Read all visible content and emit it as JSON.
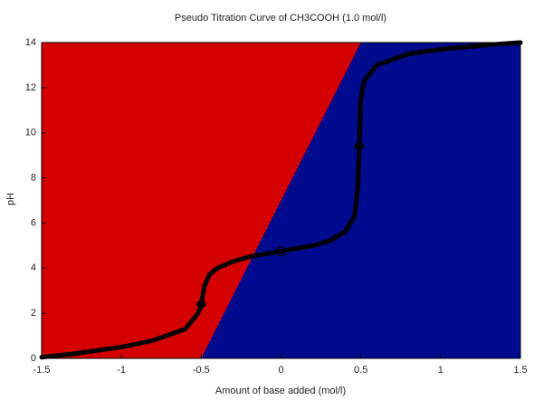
{
  "chart_data": {
    "type": "line",
    "title": "Pseudo Titration Curve of CH3COOH (1.0 mol/l)",
    "xlabel": "Amount of base added (mol/l)",
    "ylabel": "pH",
    "xlim": [
      -1.5,
      1.5
    ],
    "ylim": [
      0,
      14
    ],
    "xticks": [
      -1.5,
      -1,
      -0.5,
      0,
      0.5,
      1,
      1.5
    ],
    "yticks": [
      0,
      2,
      4,
      6,
      8,
      10,
      12,
      14
    ],
    "regions": {
      "left_color": "#d40000",
      "right_color": "#000a8c",
      "boundary_x": [
        -0.5,
        0.5
      ],
      "boundary_y": [
        0,
        14
      ]
    },
    "series": [
      {
        "color": "#000000",
        "x": [
          -1.5,
          -1.3,
          -1.0,
          -0.8,
          -0.6,
          -0.52,
          -0.5,
          -0.48,
          -0.45,
          -0.4,
          -0.3,
          -0.2,
          0,
          0.2,
          0.3,
          0.4,
          0.46,
          0.48,
          0.49,
          0.5,
          0.52,
          0.6,
          0.8,
          1.0,
          1.3,
          1.5
        ],
        "values": [
          0.05,
          0.2,
          0.5,
          0.8,
          1.3,
          2.0,
          2.4,
          3.2,
          3.7,
          4.0,
          4.3,
          4.5,
          4.75,
          5.0,
          5.2,
          5.6,
          6.3,
          7.5,
          9.4,
          11.5,
          12.3,
          13.0,
          13.5,
          13.7,
          13.9,
          14.0
        ]
      },
      {
        "color": "#000000",
        "marker": "diamond",
        "x": [
          -0.5,
          0.49
        ],
        "values": [
          2.4,
          9.4
        ]
      },
      {
        "color": "#000000",
        "marker": "hollow-circle",
        "x": [
          0
        ],
        "values": [
          4.75
        ]
      }
    ]
  }
}
